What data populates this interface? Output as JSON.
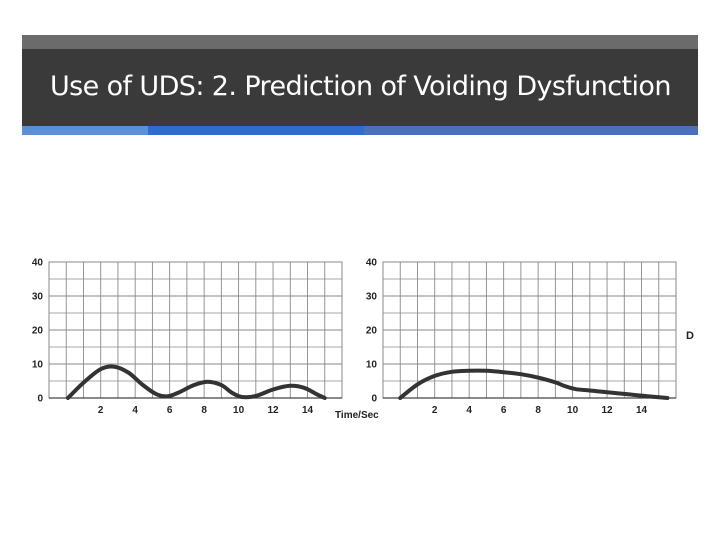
{
  "slide": {
    "title": "Use of UDS: 2. Prediction of Voiding Dysfunction",
    "side_letter": "D",
    "colors": {
      "title_bar": "#3a3a3a",
      "accent_1": "#5b8fd6",
      "accent_2": "#2f6bd0",
      "accent_3": "#4a6fbf",
      "curve": "#333333",
      "grid": "#8a8a8a"
    }
  },
  "chart_data": [
    {
      "type": "line",
      "title": "",
      "xlabel": "Time/Sec",
      "ylabel": "",
      "ylim": [
        0,
        40
      ],
      "xlim": [
        -1,
        16
      ],
      "y_ticks": [
        "40",
        "30",
        "20",
        "10",
        "0"
      ],
      "y_tick_values": [
        40,
        30,
        20,
        10,
        0
      ],
      "x_ticks": [
        "2",
        "4",
        "6",
        "8",
        "10",
        "12",
        "14"
      ],
      "x_tick_values": [
        2,
        4,
        6,
        8,
        10,
        12,
        14
      ],
      "grid": true,
      "series": [
        {
          "name": "",
          "x": [
            0.1,
            1.0,
            2.0,
            2.8,
            3.6,
            4.4,
            5.2,
            5.9,
            6.6,
            7.4,
            8.2,
            9.0,
            9.6,
            10.2,
            11.0,
            12.0,
            13.0,
            13.8,
            14.5,
            15.0
          ],
          "y": [
            0,
            4.5,
            8.5,
            9.2,
            7.5,
            4.0,
            1.2,
            0.5,
            1.8,
            3.8,
            4.8,
            3.8,
            1.6,
            0.3,
            0.6,
            2.5,
            3.6,
            3.0,
            1.2,
            0
          ]
        }
      ]
    },
    {
      "type": "line",
      "title": "",
      "xlabel": "",
      "ylabel": "",
      "ylim": [
        0,
        40
      ],
      "xlim": [
        -1,
        16
      ],
      "y_ticks": [
        "40",
        "30",
        "20",
        "10",
        "0"
      ],
      "y_tick_values": [
        40,
        30,
        20,
        10,
        0
      ],
      "x_ticks": [
        "2",
        "4",
        "6",
        "8",
        "10",
        "12",
        "14"
      ],
      "x_tick_values": [
        2,
        4,
        6,
        8,
        10,
        12,
        14
      ],
      "grid": true,
      "series": [
        {
          "name": "",
          "x": [
            0.0,
            1.0,
            2.0,
            3.0,
            4.0,
            5.0,
            6.0,
            7.0,
            8.0,
            9.0,
            9.6,
            10.2,
            11.0,
            12.0,
            13.0,
            14.0,
            15.0,
            15.5
          ],
          "y": [
            0,
            4.0,
            6.5,
            7.7,
            8.0,
            8.0,
            7.6,
            7.0,
            6.0,
            4.6,
            3.4,
            2.6,
            2.2,
            1.7,
            1.2,
            0.7,
            0.2,
            0
          ]
        }
      ]
    }
  ]
}
